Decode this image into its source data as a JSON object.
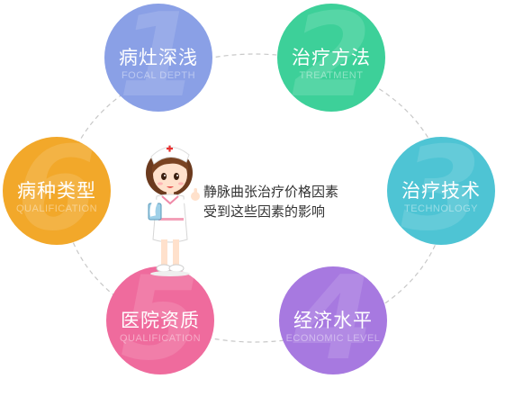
{
  "nodes": [
    {
      "number": "1",
      "title": "病灶深浅",
      "subtitle": "FOCAL DEPTH",
      "color": "#8aa0e6"
    },
    {
      "number": "2",
      "title": "治疗方法",
      "subtitle": "TREATMENT",
      "color": "#3dd099"
    },
    {
      "number": "3",
      "title": "治疗技术",
      "subtitle": "TECHNOLOGY",
      "color": "#4ec4d4"
    },
    {
      "number": "4",
      "title": "经济水平",
      "subtitle": "ECONOMIC LEVEL",
      "color": "#a779e0"
    },
    {
      "number": "5",
      "title": "医院资质",
      "subtitle": "QUALIFICATION",
      "color": "#ef6b9d"
    },
    {
      "number": "6",
      "title": "病种类型",
      "subtitle": "QUALIFICATION",
      "color": "#f2a82a"
    }
  ],
  "center": {
    "line1": "静脉曲张治疗价格因素",
    "line2": "受到这些因素的影响"
  }
}
